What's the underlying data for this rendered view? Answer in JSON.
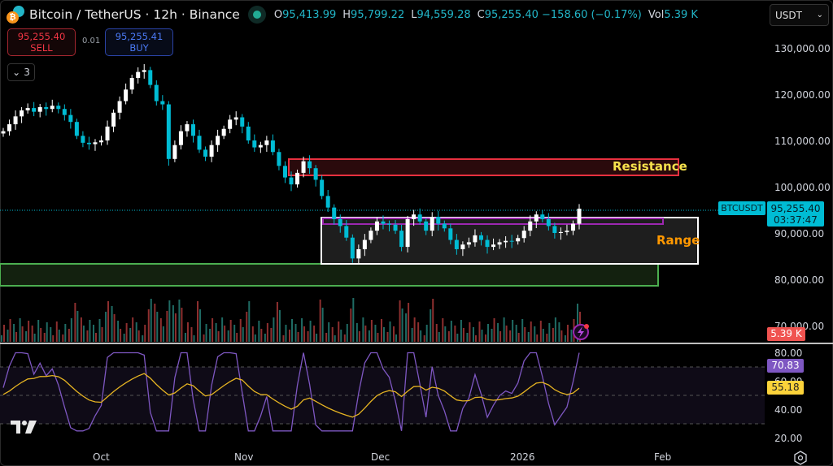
{
  "header": {
    "symbol_title": "Bitcoin / TetherUS · 12h · Binance",
    "market_status": "open",
    "ohlc": [
      {
        "key": "O",
        "value": "95,413.99"
      },
      {
        "key": "H",
        "value": "95,799.22"
      },
      {
        "key": "L",
        "value": "94,559.28"
      },
      {
        "key": "C",
        "value": "95,255.40 −158.60 (−0.17%)"
      },
      {
        "key": "Vol",
        "value": "5.39 K"
      }
    ]
  },
  "trade": {
    "sell_price": "95,255.40",
    "sell_label": "SELL",
    "spread": "0.01",
    "buy_price": "95,255.41",
    "buy_label": "BUY"
  },
  "indicators_collapse": {
    "count": "3"
  },
  "currency_select": {
    "value": "USDT"
  },
  "price_axis": {
    "labels": [
      "130,000.00",
      "120,000.00",
      "110,000.00",
      "100,000.00",
      "90,000.00",
      "80,000.00",
      "70,000.00"
    ]
  },
  "rsi_axis": {
    "labels": [
      "80.00",
      "60.00",
      "40.00",
      "20.00"
    ]
  },
  "tags": {
    "symbol": "BTCUSDT",
    "last_price": "95,255.40",
    "countdown": "03:37:47",
    "volume": "5.39 K",
    "rsi": "70.83",
    "rsi_ma": "55.18"
  },
  "time_axis": [
    "Oct",
    "Nov",
    "Dec",
    "2026",
    "Feb"
  ],
  "annotations": {
    "resistance_label": "Resistance",
    "range_label": "Range"
  },
  "colors": {
    "up": "#ffffff",
    "down": "#00bcd4",
    "vol_up": "#1f6b64",
    "vol_down": "#8e2f2f",
    "resistance": "#e8303f",
    "range_border": "#ffffff",
    "support": "#4caf50",
    "rsi": "#7e57c2",
    "rsi_ma": "#e6b422",
    "resistance_text": "#f5e14c",
    "range_text": "#ff9800"
  },
  "chart_data": {
    "type": "candlestick",
    "title": "Bitcoin / TetherUS · 12h · Binance",
    "ylabel": "USDT",
    "ylim": [
      66000,
      136000
    ],
    "x_ticks": [
      "Oct",
      "Nov",
      "Dec",
      "2026",
      "Feb"
    ],
    "closes": [
      112000,
      113500,
      115200,
      116500,
      117000,
      116200,
      117200,
      116800,
      117500,
      116800,
      115500,
      114000,
      111000,
      109500,
      109200,
      109600,
      110000,
      113000,
      116000,
      118500,
      121000,
      123500,
      124800,
      125200,
      122000,
      118500,
      117800,
      106000,
      109000,
      112000,
      113500,
      111000,
      108000,
      106500,
      109000,
      111000,
      112500,
      114500,
      115000,
      113000,
      110000,
      108500,
      109000,
      110000,
      107500,
      104500,
      102000,
      100500,
      103000,
      105500,
      104000,
      101500,
      98000,
      95500,
      93000,
      91500,
      89000,
      84500,
      86500,
      88500,
      90500,
      92500,
      92000,
      91800,
      90500,
      87000,
      93000,
      94000,
      92500,
      90500,
      93500,
      92000,
      91000,
      88500,
      86500,
      87500,
      88000,
      89500,
      88500,
      87000,
      87500,
      88000,
      88300,
      88200,
      88900,
      90500,
      92500,
      94000,
      93000,
      91500,
      90000,
      90200,
      90500,
      92000,
      95255
    ],
    "annotations": [
      {
        "label": "Resistance",
        "y_range": [
          102800,
          106400
        ]
      },
      {
        "label": "Range",
        "y_range": [
          83000,
          93600
        ]
      },
      {
        "label": "support-zone",
        "y_range": [
          78800,
          83500
        ]
      }
    ],
    "last": {
      "open": 95413.99,
      "high": 95799.22,
      "low": 94559.28,
      "close": 95255.4,
      "change": -158.6,
      "change_pct": -0.17,
      "volume": "5.39K"
    },
    "rsi": {
      "ylim": [
        20,
        80
      ],
      "bands": [
        30,
        50,
        70
      ],
      "last": 70.83,
      "ma_last": 55.18
    }
  }
}
